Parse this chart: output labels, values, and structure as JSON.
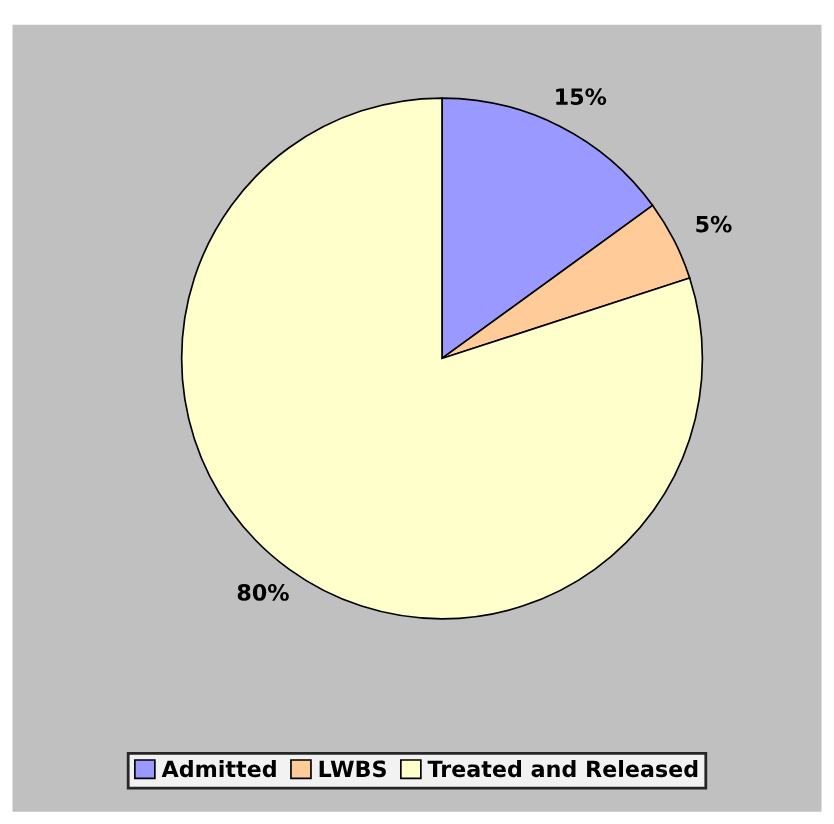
{
  "chart_data": {
    "type": "pie",
    "categories": [
      "Admitted",
      "LWBS",
      "Treated and Released"
    ],
    "values": [
      15,
      5,
      80
    ],
    "colors": [
      "#9999ff",
      "#ffcc99",
      "#ffffcc"
    ],
    "value_labels": [
      "15%",
      "5%",
      "80%"
    ],
    "legend": "bottom"
  }
}
